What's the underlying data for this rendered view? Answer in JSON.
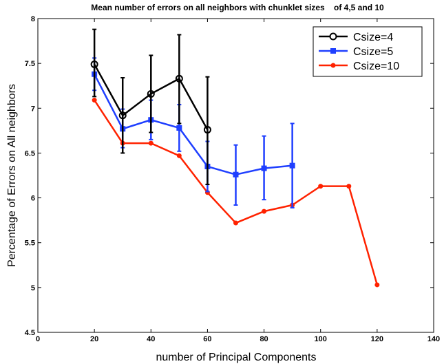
{
  "chart_data": {
    "type": "line",
    "title": "Mean number of errors on all neighbors with chunklet sizes    of 4,5 and 10",
    "xlabel": "number of Principal Components",
    "ylabel": "Percentage of Errors on All neighbors",
    "xlim": [
      0,
      140
    ],
    "ylim": [
      4.5,
      8
    ],
    "xticks": [
      0,
      20,
      40,
      60,
      80,
      100,
      120,
      140
    ],
    "yticks": [
      4.5,
      5,
      5.5,
      6,
      6.5,
      7,
      7.5,
      8
    ],
    "xtick_labels": [
      "0",
      "20",
      "40",
      "60",
      "80",
      "100",
      "120",
      "140"
    ],
    "ytick_labels": [
      "4.5",
      "5",
      "5.5",
      "6",
      "6.5",
      "7",
      "7.5",
      "8"
    ],
    "grid": false,
    "legend_position": "top-right",
    "series": [
      {
        "name": "Csize=4",
        "color": "#000000",
        "marker": "circle-open",
        "x": [
          20,
          30,
          40,
          50,
          60
        ],
        "y": [
          7.49,
          6.92,
          7.16,
          7.33,
          6.76
        ],
        "err_low": [
          7.13,
          6.5,
          6.73,
          6.83,
          6.15
        ],
        "err_high": [
          7.88,
          7.34,
          7.59,
          7.82,
          7.35
        ]
      },
      {
        "name": "Csize=5",
        "color": "#1f3fff",
        "marker": "square",
        "x": [
          20,
          30,
          40,
          50,
          60,
          70,
          80,
          90
        ],
        "y": [
          7.38,
          6.77,
          6.87,
          6.78,
          6.35,
          6.26,
          6.33,
          6.36
        ],
        "err_low": [
          7.2,
          6.56,
          6.65,
          6.52,
          6.07,
          5.92,
          5.98,
          5.89
        ],
        "err_high": [
          7.56,
          6.99,
          7.09,
          7.04,
          6.63,
          6.59,
          6.69,
          6.83
        ]
      },
      {
        "name": "Csize=10",
        "color": "#ff2200",
        "marker": "dot",
        "x": [
          20,
          30,
          40,
          50,
          60,
          70,
          80,
          90,
          100,
          110,
          120
        ],
        "y": [
          7.09,
          6.61,
          6.61,
          6.47,
          6.06,
          5.72,
          5.85,
          5.92,
          6.13,
          6.13,
          5.03
        ]
      }
    ]
  }
}
